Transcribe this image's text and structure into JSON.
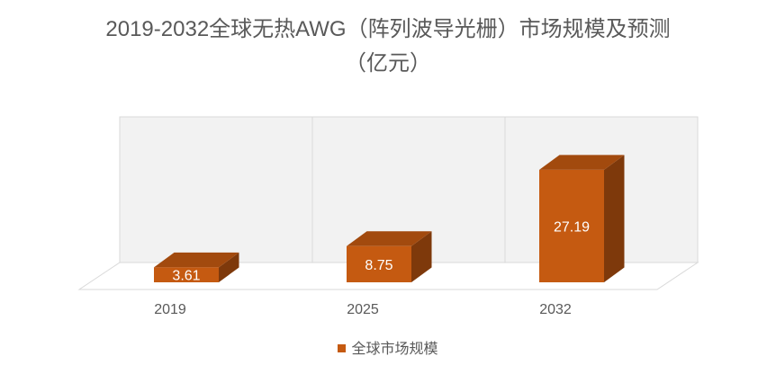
{
  "chart_data": {
    "type": "bar",
    "title": "2019-2032全球无热AWG（阵列波导光栅）市场规模及预测（亿元）",
    "title_lines": [
      "2019-2032全球无热AWG（阵列波导光栅）市场规模及预测",
      "（亿元）"
    ],
    "categories": [
      "2019",
      "2025",
      "2032"
    ],
    "series": [
      {
        "name": "全球市场规模",
        "values": [
          3.61,
          8.75,
          27.19
        ]
      }
    ],
    "data_labels": [
      "3.61",
      "8.75",
      "27.19"
    ],
    "xlabel": "",
    "ylabel": "",
    "ylim": [
      0,
      30
    ],
    "grid": false,
    "legend": "bottom",
    "style": "3d-column"
  },
  "colors": {
    "bar_front": "#c55a11",
    "bar_top": "#a24a0e",
    "bar_side": "#7e390b",
    "wall": "#f2f2f2",
    "wall_line": "#d9d9d9",
    "text": "#595959"
  }
}
